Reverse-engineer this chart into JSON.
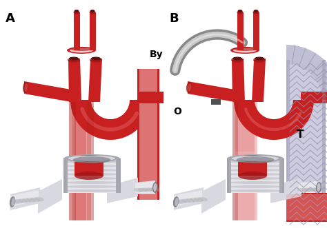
{
  "bg_color": "#ffffff",
  "label_A": "A",
  "label_B": "B",
  "label_By": "By",
  "label_O": "O",
  "label_T": "T",
  "red_dark": "#A01515",
  "red_mid": "#C82020",
  "red_light": "#E06060",
  "red_pale": "#E8A0A0",
  "red_vlight": "#F0C8C8",
  "silver_dark": "#707078",
  "silver_mid": "#A8A8B0",
  "silver_light": "#D8D8E0",
  "silver_vlight": "#F0F0F4",
  "stent_fill": "#C0C0D4",
  "stent_light": "#D8D8E8",
  "stent_dark": "#8888A8",
  "stent_line": "#9090B0",
  "bypass_dark": "#888888",
  "bypass_light": "#C8C8C8",
  "fig_width": 4.74,
  "fig_height": 3.31,
  "dpi": 100
}
